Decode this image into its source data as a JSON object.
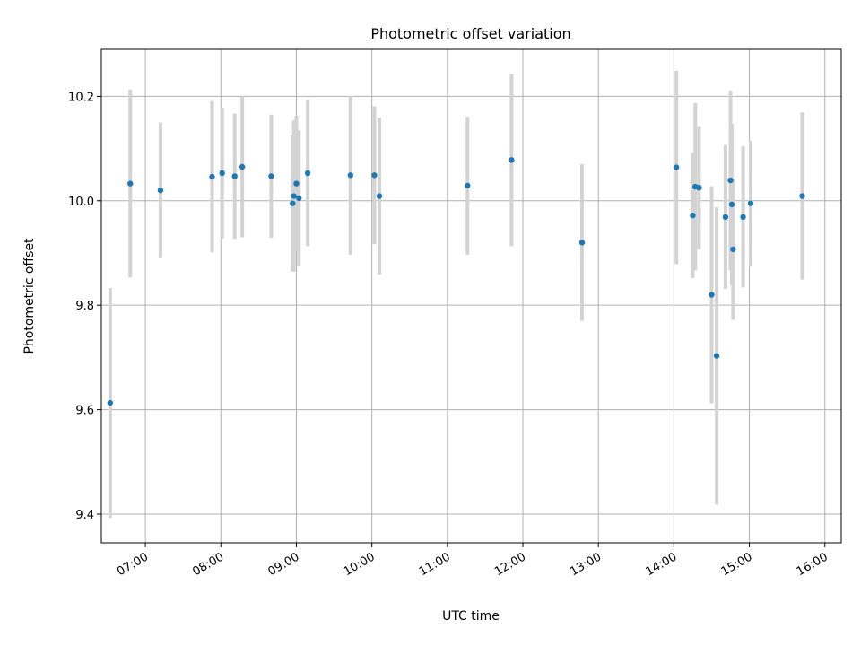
{
  "chart_data": {
    "type": "scatter",
    "title": "Photometric offset variation",
    "xlabel": "UTC time",
    "ylabel": "Photometric offset",
    "xlim": [
      "06:25",
      "16:13"
    ],
    "ylim": [
      9.345,
      10.29
    ],
    "xticks": [
      "07:00",
      "08:00",
      "09:00",
      "10:00",
      "11:00",
      "12:00",
      "13:00",
      "14:00",
      "15:00",
      "16:00"
    ],
    "yticks": [
      9.4,
      9.6,
      9.8,
      10.0,
      10.2
    ],
    "grid": true,
    "point_color": "#1f77b4",
    "errorbar_color": "#d3d3d3",
    "points": [
      {
        "x": "06:32",
        "y": 9.613,
        "err": 0.22
      },
      {
        "x": "06:48",
        "y": 10.033,
        "err": 0.18
      },
      {
        "x": "07:12",
        "y": 10.02,
        "err": 0.13
      },
      {
        "x": "07:53",
        "y": 10.046,
        "err": 0.145
      },
      {
        "x": "08:01",
        "y": 10.053,
        "err": 0.125
      },
      {
        "x": "08:11",
        "y": 10.047,
        "err": 0.12
      },
      {
        "x": "08:17",
        "y": 10.065,
        "err": 0.135
      },
      {
        "x": "08:40",
        "y": 10.047,
        "err": 0.118
      },
      {
        "x": "08:57",
        "y": 9.995,
        "err": 0.13
      },
      {
        "x": "08:58",
        "y": 10.009,
        "err": 0.145
      },
      {
        "x": "09:00",
        "y": 10.033,
        "err": 0.13
      },
      {
        "x": "09:02",
        "y": 10.005,
        "err": 0.13
      },
      {
        "x": "09:09",
        "y": 10.053,
        "err": 0.14
      },
      {
        "x": "09:43",
        "y": 10.049,
        "err": 0.152
      },
      {
        "x": "10:02",
        "y": 10.049,
        "err": 0.132
      },
      {
        "x": "10:06",
        "y": 10.009,
        "err": 0.15
      },
      {
        "x": "11:16",
        "y": 10.029,
        "err": 0.132
      },
      {
        "x": "11:51",
        "y": 10.078,
        "err": 0.165
      },
      {
        "x": "12:47",
        "y": 9.92,
        "err": 0.15
      },
      {
        "x": "14:02",
        "y": 10.064,
        "err": 0.185
      },
      {
        "x": "14:15",
        "y": 9.972,
        "err": 0.12
      },
      {
        "x": "14:17",
        "y": 10.027,
        "err": 0.16
      },
      {
        "x": "14:20",
        "y": 10.025,
        "err": 0.118
      },
      {
        "x": "14:30",
        "y": 9.82,
        "err": 0.208
      },
      {
        "x": "14:34",
        "y": 9.703,
        "err": 0.285
      },
      {
        "x": "14:41",
        "y": 9.969,
        "err": 0.138
      },
      {
        "x": "14:45",
        "y": 10.039,
        "err": 0.172
      },
      {
        "x": "14:46",
        "y": 9.993,
        "err": 0.155
      },
      {
        "x": "14:47",
        "y": 9.907,
        "err": 0.135
      },
      {
        "x": "14:55",
        "y": 9.969,
        "err": 0.135
      },
      {
        "x": "15:01",
        "y": 9.995,
        "err": 0.12
      },
      {
        "x": "15:42",
        "y": 10.009,
        "err": 0.16
      }
    ]
  }
}
